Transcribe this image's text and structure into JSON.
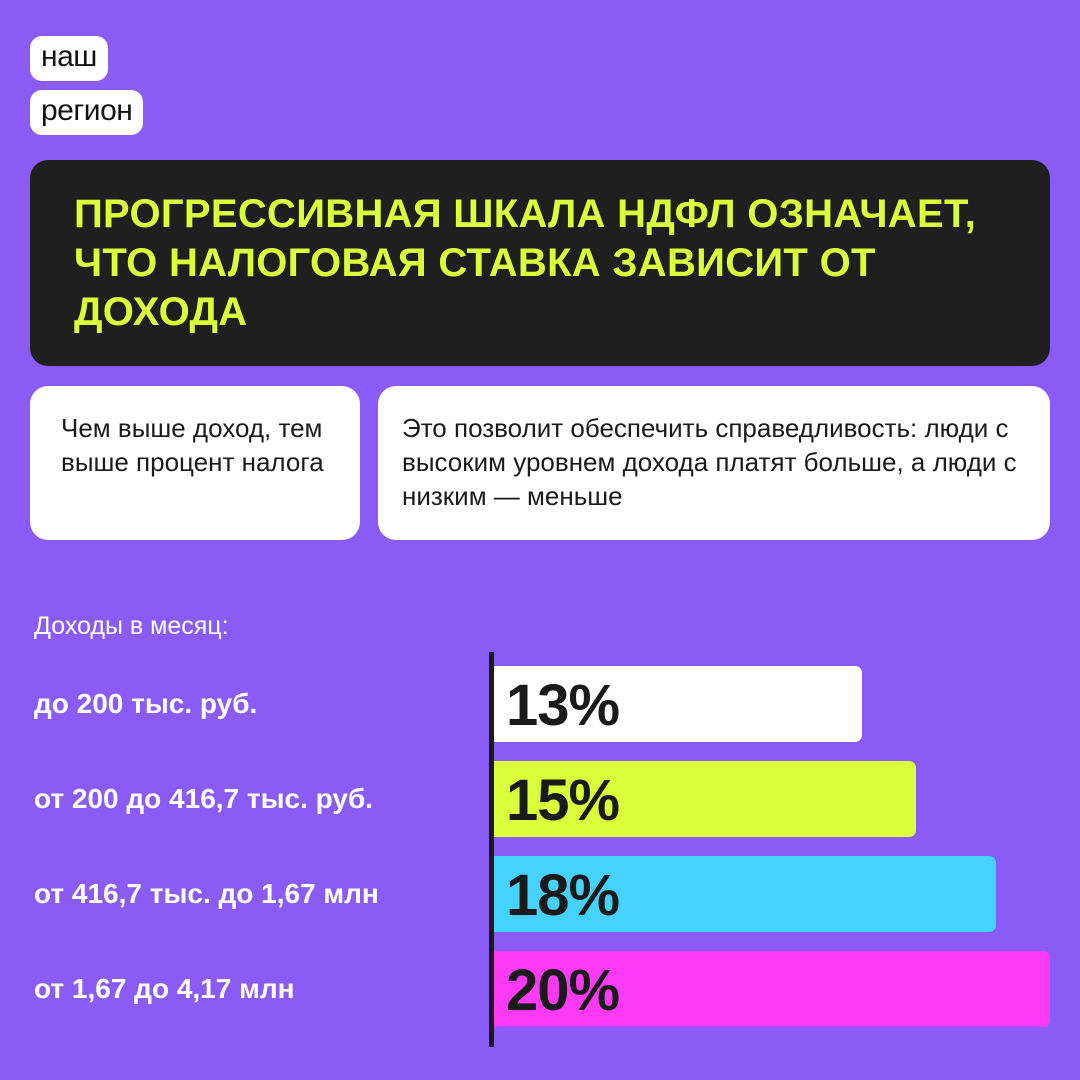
{
  "logo": {
    "line1": "наш",
    "line2": "регион"
  },
  "headline": "ПРОГРЕССИВНАЯ ШКАЛА НДФЛ ОЗНАЧАЕТ, ЧТО НАЛОГОВАЯ СТАВКА ЗАВИСИТ ОТ ДОХОДА",
  "cards": {
    "left": "Чем выше доход, тем выше процент налога",
    "right": "Это позволит обеспечить справедливость: люди с высоким уровнем дохода платят больше, а люди с низким — меньше"
  },
  "colors": {
    "background": "#8a5cf5",
    "headline_bg": "#1f1f1f",
    "headline_text": "#dcff3b"
  },
  "chart_data": {
    "type": "bar",
    "orientation": "horizontal",
    "title": "Доходы в месяц:",
    "categories": [
      "до 200 тыс. руб.",
      "от 200 до 416,7 тыс. руб.",
      "от 416,7 тыс. до 1,67 млн",
      "от 1,67 до 4,17 млн"
    ],
    "values": [
      13,
      15,
      18,
      20
    ],
    "value_labels": [
      "13%",
      "15%",
      "18%",
      "20%"
    ],
    "colors": [
      "#ffffff",
      "#dcff3b",
      "#45d2ff",
      "#ff3af5"
    ],
    "unit": "%",
    "xlim": [
      0,
      20
    ]
  }
}
